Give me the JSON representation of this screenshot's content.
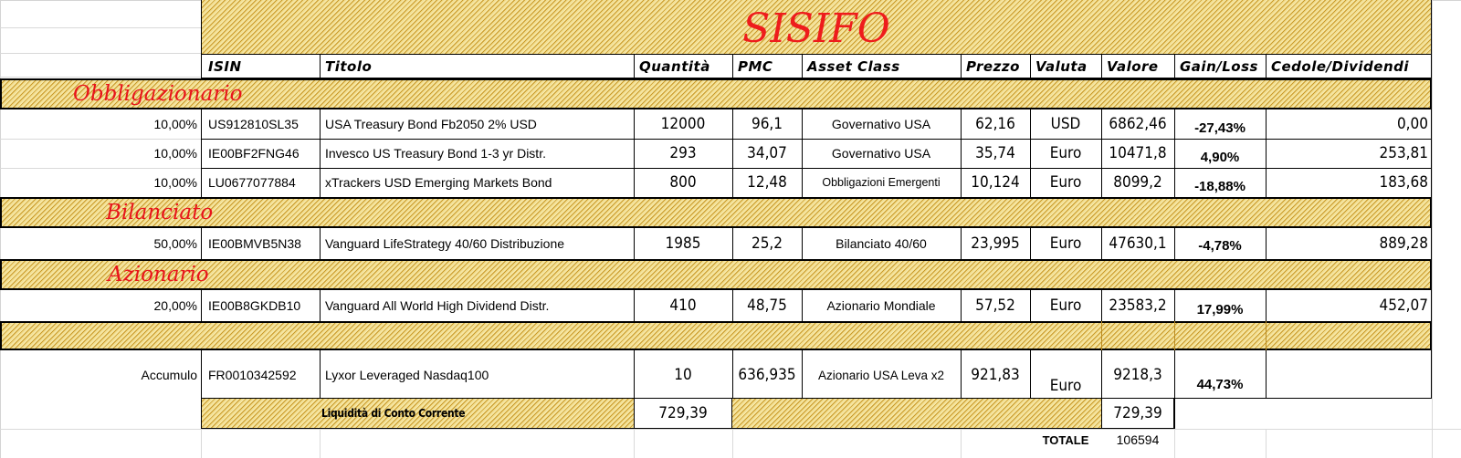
{
  "title": "SISIFO",
  "headers": {
    "isin": "ISIN",
    "titolo": "Titolo",
    "quantita": "Quantità",
    "pmc": "PMC",
    "asset_class": "Asset Class",
    "prezzo": "Prezzo",
    "valuta": "Valuta",
    "valore": "Valore",
    "gain_loss": "Gain/Loss",
    "cedole": "Cedole/Dividendi"
  },
  "sections": {
    "obbligazionario": "Obbligazionario",
    "bilanciato": "Bilanciato",
    "azionario": "Azionario"
  },
  "rows": [
    {
      "weight": "10,00%",
      "isin": "US912810SL35",
      "titolo": "USA Treasury Bond Fb2050 2% USD",
      "quantita": "12000",
      "pmc": "96,1",
      "asset_class": "Governativo USA",
      "prezzo": "62,16",
      "valuta": "USD",
      "valore": "6862,46",
      "gain_loss": "-27,43%",
      "cedole": "0,00"
    },
    {
      "weight": "10,00%",
      "isin": "IE00BF2FNG46",
      "titolo": "Invesco US Treasury Bond 1-3 yr Distr.",
      "quantita": "293",
      "pmc": "34,07",
      "asset_class": "Governativo USA",
      "prezzo": "35,74",
      "valuta": "Euro",
      "valore": "10471,8",
      "gain_loss": "4,90%",
      "cedole": "253,81"
    },
    {
      "weight": "10,00%",
      "isin": "LU0677077884",
      "titolo": "xTrackers USD Emerging Markets Bond",
      "quantita": "800",
      "pmc": "12,48",
      "asset_class": "Obbligazioni Emergenti",
      "prezzo": "10,124",
      "valuta": "Euro",
      "valore": "8099,2",
      "gain_loss": "-18,88%",
      "cedole": "183,68"
    },
    {
      "weight": "50,00%",
      "isin": "IE00BMVB5N38",
      "titolo": "Vanguard LifeStrategy 40/60 Distribuzione",
      "quantita": "1985",
      "pmc": "25,2",
      "asset_class": "Bilanciato 40/60",
      "prezzo": "23,995",
      "valuta": "Euro",
      "valore": "47630,1",
      "gain_loss": "-4,78%",
      "cedole": "889,28"
    },
    {
      "weight": "20,00%",
      "isin": "IE00B8GKDB10",
      "titolo": "Vanguard All World High Dividend Distr.",
      "quantita": "410",
      "pmc": "48,75",
      "asset_class": "Azionario Mondiale",
      "prezzo": "57,52",
      "valuta": "Euro",
      "valore": "23583,2",
      "gain_loss": "17,99%",
      "cedole": "452,07"
    },
    {
      "weight": "Accumulo",
      "isin": "FR0010342592",
      "titolo": "Lyxor Leveraged Nasdaq100",
      "quantita": "10",
      "pmc": "636,935",
      "asset_class": "Azionario USA Leva x2",
      "prezzo": "921,83",
      "valuta": "Euro",
      "valore": "9218,3",
      "gain_loss": "44,73%",
      "cedole": ""
    }
  ],
  "liquidita": {
    "label": "Liquidità di Conto Corrente",
    "quantita": "729,39",
    "valore": "729,39"
  },
  "totale": {
    "label": "TOTALE",
    "value": "106594"
  }
}
